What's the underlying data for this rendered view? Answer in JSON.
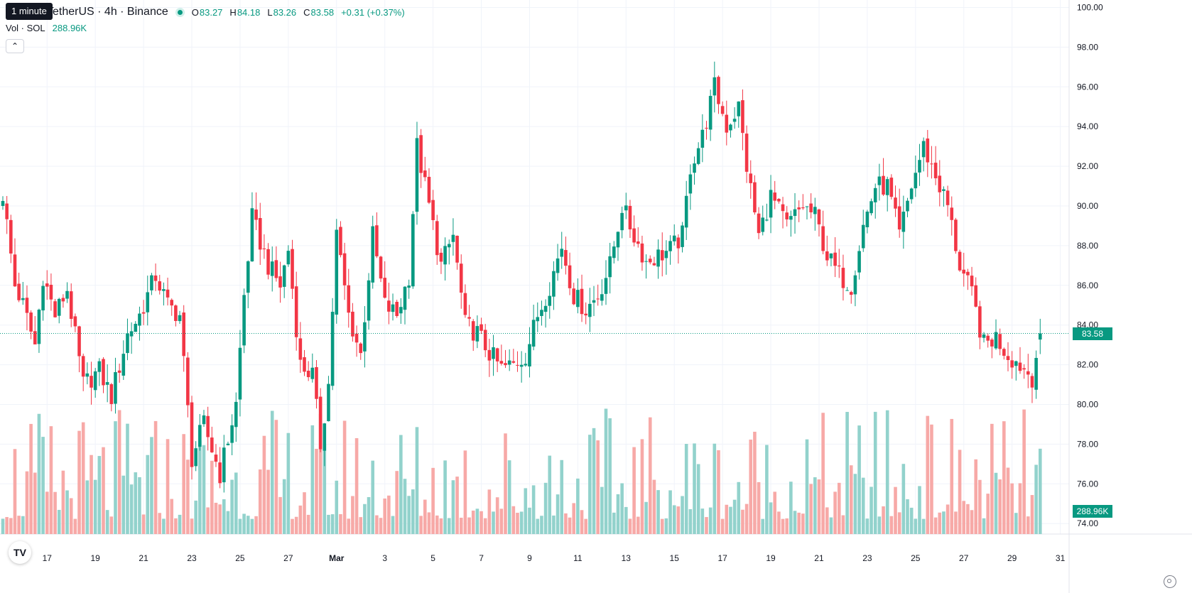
{
  "legend": {
    "symbol_title": "TetherUS · 4h · Binance",
    "tooltip": "1 minute",
    "ohlc": [
      {
        "key": "O",
        "value": "83.27"
      },
      {
        "key": "H",
        "value": "84.18"
      },
      {
        "key": "L",
        "value": "83.26"
      },
      {
        "key": "C",
        "value": "83.58"
      }
    ],
    "change": "+0.31 (+0.37%)",
    "vol_label": "Vol · SOL",
    "vol_value": "288.96K",
    "collapse_icon": "chevron-up-icon"
  },
  "price_tags": {
    "last_price": "83.58",
    "last_volume": "288.96K"
  },
  "branding": {
    "logo_text": "TV"
  },
  "colors": {
    "up": "#089981",
    "down": "#f23645",
    "volume_up": "#92d2cc",
    "volume_down": "#f7a9a7",
    "grid": "#f0f3fa",
    "axis_text": "#131722",
    "last_price_line": "#089981"
  },
  "chart_data": {
    "type": "candlestick",
    "timeframe": "4h",
    "ylim": [
      73.5,
      100.5
    ],
    "y_ticks": [
      100,
      98,
      96,
      94,
      92,
      90,
      88,
      86,
      84,
      82,
      80,
      78,
      76,
      74
    ],
    "x_ticks": [
      {
        "label": "17",
        "index": 11
      },
      {
        "label": "19",
        "index": 23
      },
      {
        "label": "21",
        "index": 35
      },
      {
        "label": "23",
        "index": 47
      },
      {
        "label": "25",
        "index": 59
      },
      {
        "label": "27",
        "index": 71
      },
      {
        "label": "Mar",
        "index": 83
      },
      {
        "label": "3",
        "index": 95
      },
      {
        "label": "5",
        "index": 107
      },
      {
        "label": "7",
        "index": 119
      },
      {
        "label": "9",
        "index": 131
      },
      {
        "label": "11",
        "index": 143
      },
      {
        "label": "13",
        "index": 155
      },
      {
        "label": "15",
        "index": 167
      },
      {
        "label": "17",
        "index": 179
      },
      {
        "label": "19",
        "index": 191
      },
      {
        "label": "21",
        "index": 203
      },
      {
        "label": "23",
        "index": 215
      },
      {
        "label": "25",
        "index": 227
      },
      {
        "label": "27",
        "index": 239
      },
      {
        "label": "29",
        "index": 251
      },
      {
        "label": "31",
        "index": 263
      }
    ],
    "last_price": 83.58,
    "last_volume": "288.96K",
    "anchors": [
      [
        0,
        90.6
      ],
      [
        3,
        86.0
      ],
      [
        5,
        85.0
      ],
      [
        8,
        83.0
      ],
      [
        10,
        86.5
      ],
      [
        13,
        84.5
      ],
      [
        16,
        85.8
      ],
      [
        20,
        81.0
      ],
      [
        24,
        81.7
      ],
      [
        27,
        80.4
      ],
      [
        31,
        83.5
      ],
      [
        34,
        84.5
      ],
      [
        38,
        86.5
      ],
      [
        41,
        85.0
      ],
      [
        44,
        84.5
      ],
      [
        47,
        77.3
      ],
      [
        50,
        79.0
      ],
      [
        54,
        76.5
      ],
      [
        58,
        80.0
      ],
      [
        60,
        85.5
      ],
      [
        62,
        89.4
      ],
      [
        66,
        87.0
      ],
      [
        69,
        86.0
      ],
      [
        71,
        87.8
      ],
      [
        74,
        82.0
      ],
      [
        77,
        81.5
      ],
      [
        79,
        78.0
      ],
      [
        81,
        81.0
      ],
      [
        83,
        88.6
      ],
      [
        86,
        84.5
      ],
      [
        89,
        82.5
      ],
      [
        92,
        88.5
      ],
      [
        95,
        85.0
      ],
      [
        98,
        84.5
      ],
      [
        101,
        86.5
      ],
      [
        103,
        93.0
      ],
      [
        106,
        90.0
      ],
      [
        109,
        87.0
      ],
      [
        112,
        88.5
      ],
      [
        115,
        84.0
      ],
      [
        118,
        83.6
      ],
      [
        121,
        82.6
      ],
      [
        124,
        81.8
      ],
      [
        127,
        82.0
      ],
      [
        130,
        82.5
      ],
      [
        133,
        84.5
      ],
      [
        136,
        86.0
      ],
      [
        139,
        88.0
      ],
      [
        142,
        85.5
      ],
      [
        145,
        84.8
      ],
      [
        148,
        85.5
      ],
      [
        151,
        87.0
      ],
      [
        154,
        90.0
      ],
      [
        157,
        88.5
      ],
      [
        160,
        87.2
      ],
      [
        163,
        87.5
      ],
      [
        166,
        87.8
      ],
      [
        169,
        88.5
      ],
      [
        171,
        92.0
      ],
      [
        174,
        93.5
      ],
      [
        177,
        96.0
      ],
      [
        180,
        94.0
      ],
      [
        183,
        95.0
      ],
      [
        185,
        92.0
      ],
      [
        188,
        88.5
      ],
      [
        191,
        90.5
      ],
      [
        195,
        89.0
      ],
      [
        199,
        90.0
      ],
      [
        202,
        89.5
      ],
      [
        205,
        87.5
      ],
      [
        208,
        86.5
      ],
      [
        211,
        86.0
      ],
      [
        214,
        89.0
      ],
      [
        217,
        91.0
      ],
      [
        220,
        91.0
      ],
      [
        223,
        88.5
      ],
      [
        226,
        91.0
      ],
      [
        229,
        93.0
      ],
      [
        232,
        91.5
      ],
      [
        235,
        90.0
      ],
      [
        238,
        87.0
      ],
      [
        241,
        85.5
      ],
      [
        244,
        83.0
      ],
      [
        247,
        83.4
      ],
      [
        250,
        82.5
      ],
      [
        253,
        82.0
      ],
      [
        256,
        81.4
      ],
      [
        258,
        83.58
      ]
    ],
    "volume_max": 1.0
  }
}
